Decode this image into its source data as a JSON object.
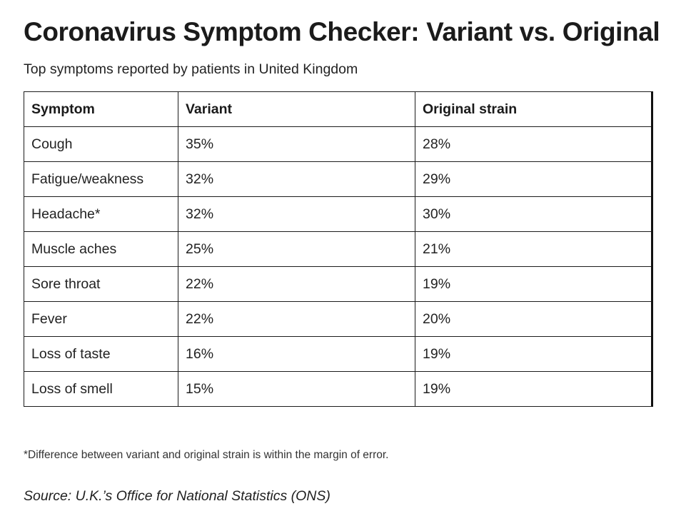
{
  "title": "Coronavirus Symptom Checker: Variant vs. Original",
  "subtitle": "Top symptoms reported by patients in United Kingdom",
  "chart_data": {
    "type": "table",
    "columns": [
      "Symptom",
      "Variant",
      "Original strain"
    ],
    "rows": [
      [
        "Cough",
        "35%",
        "28%"
      ],
      [
        "Fatigue/weakness",
        "32%",
        "29%"
      ],
      [
        "Headache*",
        "32%",
        "30%"
      ],
      [
        "Muscle aches",
        "25%",
        "21%"
      ],
      [
        "Sore throat",
        "22%",
        "19%"
      ],
      [
        "Fever",
        "22%",
        "20%"
      ],
      [
        "Loss of taste",
        "16%",
        "19%"
      ],
      [
        "Loss of smell",
        "15%",
        "19%"
      ]
    ]
  },
  "footnote": "*Difference between variant and original strain is within the margin of error.",
  "source": "Source: U.K.’s Office for National Statistics (ONS)"
}
